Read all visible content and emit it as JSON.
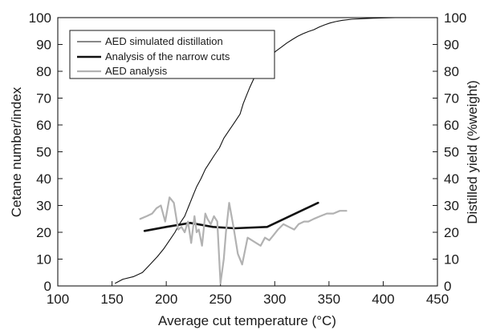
{
  "chart_data": {
    "type": "line",
    "xlabel": "Average cut temperature (°C)",
    "ylabel": "Cetane number/index",
    "y2label": "Distilled yield (%weight)",
    "xlim": [
      100,
      450
    ],
    "ylim": [
      0,
      100
    ],
    "y2lim": [
      0,
      100
    ],
    "xticks": [
      "100",
      "150",
      "200",
      "250",
      "300",
      "350",
      "400",
      "450"
    ],
    "yticks": [
      "0",
      "10",
      "20",
      "30",
      "40",
      "50",
      "60",
      "70",
      "80",
      "90",
      "100"
    ],
    "y2ticks": [
      "0",
      "10",
      "20",
      "30",
      "40",
      "50",
      "60",
      "70",
      "80",
      "90",
      "100"
    ],
    "grid": false,
    "legend_position": "top-left",
    "series": [
      {
        "name": "AED simulated distillation",
        "color": "#111111",
        "style": "thin",
        "axis": "right",
        "x": [
          153,
          160,
          170,
          178,
          185,
          192,
          198,
          203,
          208,
          212,
          217,
          221,
          225,
          228,
          232,
          236,
          240,
          244,
          249,
          253,
          258,
          263,
          268,
          271,
          274,
          277,
          281,
          286,
          291,
          296,
          301,
          306,
          311,
          316,
          321,
          326,
          331,
          336,
          341,
          346,
          351,
          356,
          362,
          371,
          381,
          391,
          401,
          411,
          420,
          425
        ],
        "y": [
          1,
          2.5,
          3.5,
          5,
          8,
          11,
          14,
          17,
          20,
          23,
          26,
          30,
          34,
          37,
          40,
          43.5,
          46,
          48.5,
          51.5,
          55,
          58,
          61,
          64,
          68,
          71,
          74,
          77.5,
          80.5,
          83,
          85.5,
          87.5,
          89,
          90.5,
          91.8,
          93,
          94,
          94.8,
          95.5,
          96.5,
          97.3,
          98,
          98.5,
          99,
          99.4,
          99.6,
          99.8,
          99.9,
          100,
          100,
          100
        ]
      },
      {
        "name": "Analysis of the narrow cuts",
        "color": "#111111",
        "style": "thick",
        "axis": "left",
        "x": [
          180,
          200,
          222,
          243,
          263,
          293,
          340
        ],
        "y": [
          20.5,
          22,
          23.5,
          22,
          21.5,
          22,
          31
        ]
      },
      {
        "name": "AED analysis",
        "color": "#b2b2b2",
        "style": "medium",
        "axis": "left",
        "x": [
          176,
          182,
          187,
          191,
          195,
          199,
          203,
          207,
          211,
          214,
          217,
          220,
          223,
          226,
          228,
          230,
          233,
          236,
          238,
          241,
          244,
          247,
          250,
          253,
          255,
          258,
          262,
          266,
          270,
          275,
          279,
          283,
          287,
          291,
          295,
          299,
          303,
          308,
          313,
          318,
          322,
          327,
          331,
          336,
          342,
          348,
          354,
          360,
          366
        ],
        "y": [
          25,
          26,
          27,
          29,
          30,
          24,
          33,
          31,
          21,
          22,
          20,
          24,
          16,
          26,
          20,
          21,
          15,
          27,
          25,
          23,
          26,
          24,
          1,
          10,
          20,
          31,
          22,
          12,
          8,
          18,
          17,
          16,
          15,
          18,
          17,
          19,
          21,
          23,
          22,
          21,
          23,
          24,
          24,
          25,
          26,
          27,
          27,
          28,
          28
        ]
      }
    ]
  }
}
